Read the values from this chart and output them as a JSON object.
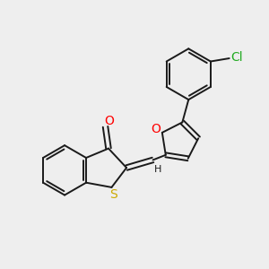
{
  "background_color": "#eeeeee",
  "bond_color": "#1a1a1a",
  "bond_width": 1.4,
  "heteroatom_O_color": "#ff0000",
  "heteroatom_S_color": "#ccaa00",
  "heteroatom_Cl_color": "#22aa22",
  "label_fontsize": 10,
  "label_fontsize_small": 8,
  "figsize": [
    3.0,
    3.0
  ],
  "dpi": 100,
  "xlim": [
    -4.0,
    4.5
  ],
  "ylim": [
    -3.5,
    4.0
  ]
}
